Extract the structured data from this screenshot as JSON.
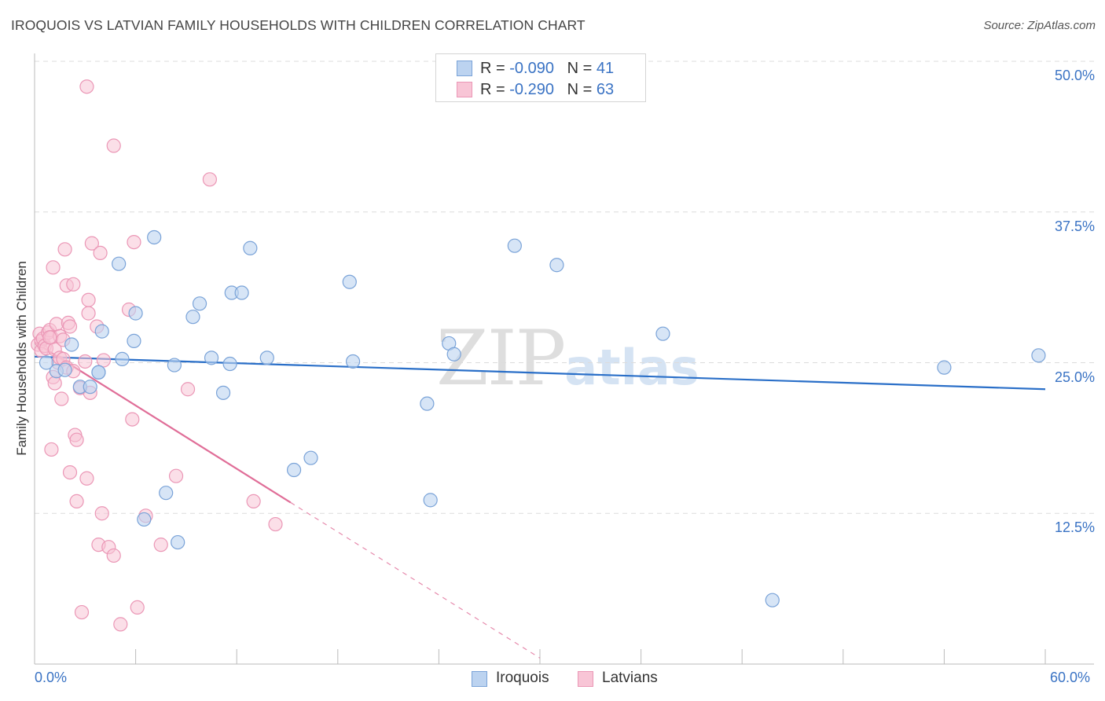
{
  "title": "IROQUOIS VS LATVIAN FAMILY HOUSEHOLDS WITH CHILDREN CORRELATION CHART",
  "source": "Source: ZipAtlas.com",
  "watermark": {
    "part1": "ZIP",
    "part2": "atlas"
  },
  "colors": {
    "iroquois_fill": "#bcd3f0",
    "iroquois_stroke": "#7aa3d8",
    "iroquois_line": "#2a6fc8",
    "latvians_fill": "#f8c5d6",
    "latvians_stroke": "#eb97b6",
    "latvians_line": "#e06e98",
    "grid": "#dcdcdc",
    "axis_text": "#3a73c4"
  },
  "legend_top": {
    "rows": [
      {
        "r_label": "R =",
        "r_value": "-0.090",
        "n_label": "N =",
        "n_value": "41"
      },
      {
        "r_label": "R =",
        "r_value": "-0.290",
        "n_label": "N =",
        "n_value": "63"
      }
    ]
  },
  "legend_bottom": {
    "iroquois": "Iroquois",
    "latvians": "Latvians"
  },
  "chart_data": {
    "type": "scatter",
    "title": "IROQUOIS VS LATVIAN FAMILY HOUSEHOLDS WITH CHILDREN CORRELATION CHART",
    "xlabel": "",
    "ylabel": "Family Households with Children",
    "xlim": [
      0,
      60
    ],
    "ylim": [
      0,
      50
    ],
    "x_tick_labels": [
      "0.0%",
      "60.0%"
    ],
    "y_ticks": [
      12.5,
      25.0,
      37.5,
      50.0
    ],
    "y_tick_labels": [
      "12.5%",
      "25.0%",
      "37.5%",
      "50.0%"
    ],
    "grid": true,
    "series": [
      {
        "name": "Iroquois",
        "R": -0.09,
        "N": 41,
        "trend": {
          "x0": 0,
          "y0": 25.5,
          "x1": 60,
          "y1": 22.8
        },
        "points": [
          [
            0.7,
            25.0
          ],
          [
            1.3,
            24.3
          ],
          [
            1.8,
            24.4
          ],
          [
            2.2,
            26.5
          ],
          [
            2.7,
            23.0
          ],
          [
            3.3,
            23.0
          ],
          [
            3.8,
            24.2
          ],
          [
            4.0,
            27.6
          ],
          [
            5.0,
            33.2
          ],
          [
            5.2,
            25.3
          ],
          [
            5.9,
            26.8
          ],
          [
            6.0,
            29.1
          ],
          [
            6.5,
            12.0
          ],
          [
            7.1,
            35.4
          ],
          [
            7.8,
            14.2
          ],
          [
            8.3,
            24.8
          ],
          [
            8.5,
            10.1
          ],
          [
            9.4,
            28.8
          ],
          [
            9.8,
            29.9
          ],
          [
            10.5,
            25.4
          ],
          [
            11.2,
            22.5
          ],
          [
            11.6,
            24.9
          ],
          [
            11.7,
            30.8
          ],
          [
            12.3,
            30.8
          ],
          [
            12.8,
            34.5
          ],
          [
            13.8,
            25.4
          ],
          [
            15.4,
            16.1
          ],
          [
            16.4,
            17.1
          ],
          [
            18.7,
            31.7
          ],
          [
            18.9,
            25.1
          ],
          [
            23.3,
            21.6
          ],
          [
            23.5,
            13.6
          ],
          [
            24.6,
            26.6
          ],
          [
            24.9,
            25.7
          ],
          [
            28.5,
            34.7
          ],
          [
            31.0,
            33.1
          ],
          [
            37.3,
            27.4
          ],
          [
            43.8,
            5.3
          ],
          [
            54.0,
            24.6
          ],
          [
            59.6,
            25.6
          ],
          [
            3.8,
            24.2
          ]
        ]
      },
      {
        "name": "Latvians",
        "R": -0.29,
        "N": 63,
        "trend": {
          "x0": 0,
          "y0": 26.7,
          "x1": 15.2,
          "y1": 13.4
        },
        "trend_dashed": {
          "x0": 15.2,
          "y0": 13.4,
          "x1": 30.0,
          "y1": 0.5
        },
        "points": [
          [
            0.2,
            26.5
          ],
          [
            0.3,
            27.4
          ],
          [
            0.4,
            26.0
          ],
          [
            0.4,
            26.8
          ],
          [
            0.5,
            27.0
          ],
          [
            0.6,
            26.4
          ],
          [
            0.7,
            26.2
          ],
          [
            0.8,
            27.5
          ],
          [
            0.9,
            27.7
          ],
          [
            1.0,
            27.1
          ],
          [
            1.0,
            17.8
          ],
          [
            1.1,
            32.9
          ],
          [
            1.1,
            23.8
          ],
          [
            1.2,
            23.3
          ],
          [
            1.2,
            26.1
          ],
          [
            1.3,
            28.2
          ],
          [
            1.4,
            25.0
          ],
          [
            1.5,
            27.2
          ],
          [
            1.5,
            25.4
          ],
          [
            1.6,
            22.0
          ],
          [
            1.7,
            26.9
          ],
          [
            1.7,
            25.3
          ],
          [
            1.8,
            34.4
          ],
          [
            1.9,
            24.6
          ],
          [
            1.9,
            31.4
          ],
          [
            2.0,
            28.3
          ],
          [
            2.1,
            15.9
          ],
          [
            2.1,
            28.0
          ],
          [
            2.3,
            31.5
          ],
          [
            2.3,
            24.3
          ],
          [
            2.4,
            19.0
          ],
          [
            2.5,
            18.6
          ],
          [
            2.5,
            13.5
          ],
          [
            2.7,
            22.9
          ],
          [
            2.8,
            4.3
          ],
          [
            3.0,
            25.1
          ],
          [
            3.1,
            47.9
          ],
          [
            3.1,
            15.4
          ],
          [
            3.2,
            30.2
          ],
          [
            3.2,
            29.1
          ],
          [
            3.3,
            22.5
          ],
          [
            3.4,
            34.9
          ],
          [
            3.7,
            28.0
          ],
          [
            3.8,
            9.9
          ],
          [
            3.9,
            34.1
          ],
          [
            4.0,
            12.5
          ],
          [
            4.1,
            25.2
          ],
          [
            4.4,
            9.7
          ],
          [
            4.7,
            9.0
          ],
          [
            4.7,
            43.0
          ],
          [
            5.1,
            3.3
          ],
          [
            5.6,
            29.4
          ],
          [
            5.8,
            20.3
          ],
          [
            5.9,
            35.0
          ],
          [
            6.1,
            4.7
          ],
          [
            6.6,
            12.3
          ],
          [
            7.5,
            9.9
          ],
          [
            8.4,
            15.6
          ],
          [
            9.1,
            22.8
          ],
          [
            10.4,
            40.2
          ],
          [
            13.0,
            13.5
          ],
          [
            14.3,
            11.6
          ],
          [
            0.9,
            27.1
          ]
        ]
      }
    ]
  }
}
